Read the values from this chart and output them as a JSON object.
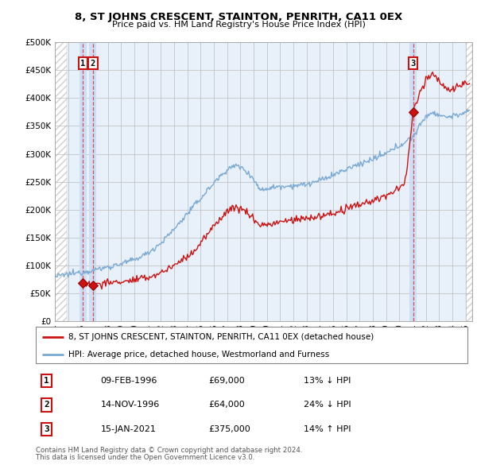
{
  "title": "8, ST JOHNS CRESCENT, STAINTON, PENRITH, CA11 0EX",
  "subtitle": "Price paid vs. HM Land Registry's House Price Index (HPI)",
  "ylim": [
    0,
    500000
  ],
  "yticks": [
    0,
    50000,
    100000,
    150000,
    200000,
    250000,
    300000,
    350000,
    400000,
    450000,
    500000
  ],
  "ytick_labels": [
    "£0",
    "£50K",
    "£100K",
    "£150K",
    "£200K",
    "£250K",
    "£300K",
    "£350K",
    "£400K",
    "£450K",
    "£500K"
  ],
  "xlim_start": 1994.0,
  "xlim_end": 2025.5,
  "transactions": [
    {
      "num": 1,
      "date_label": "09-FEB-1996",
      "price": 69000,
      "hpi_diff": "13% ↓ HPI",
      "x": 1996.12
    },
    {
      "num": 2,
      "date_label": "14-NOV-1996",
      "price": 64000,
      "hpi_diff": "24% ↓ HPI",
      "x": 1996.87
    },
    {
      "num": 3,
      "date_label": "15-JAN-2021",
      "price": 375000,
      "hpi_diff": "14% ↑ HPI",
      "x": 2021.04
    }
  ],
  "legend_line1": "8, ST JOHNS CRESCENT, STAINTON, PENRITH, CA11 0EX (detached house)",
  "legend_line2": "HPI: Average price, detached house, Westmorland and Furness",
  "footer1": "Contains HM Land Registry data © Crown copyright and database right 2024.",
  "footer2": "This data is licensed under the Open Government Licence v3.0.",
  "hpi_color": "#7aaad4",
  "sold_color": "#cc1111",
  "bg_color": "#ffffff",
  "main_bg": "#e8f0fa",
  "hatch_color": "#c0c0c0",
  "highlight_bg": "#ccddf5",
  "row_data": [
    [
      "1",
      "09-FEB-1996",
      "£69,000",
      "13% ↓ HPI"
    ],
    [
      "2",
      "14-NOV-1996",
      "£64,000",
      "24% ↓ HPI"
    ],
    [
      "3",
      "15-JAN-2021",
      "£375,000",
      "14% ↑ HPI"
    ]
  ]
}
